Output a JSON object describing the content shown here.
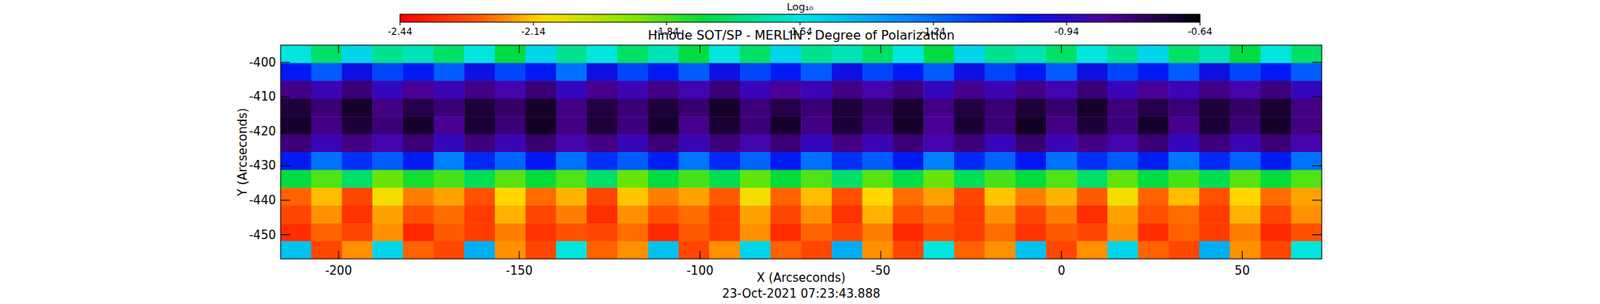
{
  "chart_data": {
    "type": "heatmap",
    "title": "Hinode SOT/SP - MERLIN : Degree of Polarization",
    "x_label": "X (Arcseconds)",
    "y_label": "Y (Arcseconds)",
    "date": "23-Oct-2021 07:23:43.888",
    "xlim": [
      -216,
      72
    ],
    "ylim": [
      -457,
      -395
    ],
    "xticks": [
      -200,
      -150,
      -100,
      -50,
      0,
      50
    ],
    "yticks": [
      -400,
      -410,
      -420,
      -430,
      -440,
      -450
    ],
    "x": [
      -211.8,
      -203.3,
      -194.8,
      -186.4,
      -177.9,
      -169.4,
      -161.0,
      -152.5,
      -144.0,
      -135.6,
      -127.1,
      -118.6,
      -110.1,
      -101.7,
      -93.2,
      -84.7,
      -76.3,
      -67.8,
      -59.3,
      -50.9,
      -42.4,
      -33.9,
      -25.5,
      -17.0,
      -8.5,
      0.0,
      8.5,
      16.9,
      25.4,
      33.9,
      42.3,
      50.8,
      59.3,
      67.8
    ],
    "y": [
      -397.6,
      -402.8,
      -407.9,
      -413.1,
      -418.3,
      -423.4,
      -428.6,
      -433.8,
      -439.0,
      -444.1,
      -449.3,
      -454.4
    ],
    "values": [
      [
        -1.55,
        -1.7,
        -1.5,
        -1.65,
        -1.6,
        -1.7,
        -1.55,
        -1.75,
        -1.5,
        -1.65,
        -1.55,
        -1.7,
        -1.6,
        -1.75,
        -1.55,
        -1.7,
        -1.5,
        -1.65,
        -1.6,
        -1.7,
        -1.55,
        -1.75,
        -1.5,
        -1.65,
        -1.6,
        -1.7,
        -1.55,
        -1.65,
        -1.5,
        -1.7,
        -1.6,
        -1.75,
        -1.55,
        -1.7
      ],
      [
        -1.05,
        -1.2,
        -1.0,
        -1.15,
        -1.05,
        -1.2,
        -1.0,
        -1.15,
        -1.05,
        -1.25,
        -1.0,
        -1.15,
        -1.05,
        -1.2,
        -1.0,
        -1.15,
        -1.05,
        -1.2,
        -1.0,
        -1.15,
        -1.05,
        -1.2,
        -1.0,
        -1.15,
        -1.05,
        -1.2,
        -1.0,
        -1.15,
        -1.05,
        -1.2,
        -1.0,
        -1.15,
        -1.05,
        -1.2
      ],
      [
        -0.82,
        -0.9,
        -0.8,
        -0.92,
        -0.84,
        -0.9,
        -0.82,
        -0.88,
        -0.8,
        -0.92,
        -0.83,
        -0.9,
        -0.82,
        -0.89,
        -0.8,
        -0.91,
        -0.84,
        -0.9,
        -0.82,
        -0.88,
        -0.81,
        -0.92,
        -0.83,
        -0.9,
        -0.82,
        -0.89,
        -0.8,
        -0.91,
        -0.84,
        -0.9,
        -0.82,
        -0.88,
        -0.81,
        -0.92
      ],
      [
        -0.72,
        -0.8,
        -0.7,
        -0.82,
        -0.74,
        -0.8,
        -0.72,
        -0.78,
        -0.7,
        -0.82,
        -0.73,
        -0.8,
        -0.72,
        -0.79,
        -0.7,
        -0.81,
        -0.74,
        -0.8,
        -0.72,
        -0.78,
        -0.71,
        -0.82,
        -0.73,
        -0.8,
        -0.72,
        -0.79,
        -0.7,
        -0.81,
        -0.74,
        -0.8,
        -0.72,
        -0.78,
        -0.71,
        -0.82
      ],
      [
        -0.7,
        -0.82,
        -0.72,
        -0.8,
        -0.7,
        -0.84,
        -0.71,
        -0.8,
        -0.69,
        -0.82,
        -0.72,
        -0.81,
        -0.7,
        -0.83,
        -0.71,
        -0.8,
        -0.7,
        -0.82,
        -0.72,
        -0.8,
        -0.7,
        -0.84,
        -0.71,
        -0.8,
        -0.69,
        -0.82,
        -0.72,
        -0.81,
        -0.7,
        -0.83,
        -0.71,
        -0.8,
        -0.7,
        -0.82
      ],
      [
        -0.8,
        -0.9,
        -0.82,
        -0.88,
        -0.8,
        -0.92,
        -0.81,
        -0.9,
        -0.79,
        -0.88,
        -0.82,
        -0.91,
        -0.8,
        -0.9,
        -0.81,
        -0.88,
        -0.8,
        -0.92,
        -0.82,
        -0.9,
        -0.8,
        -0.88,
        -0.81,
        -0.91,
        -0.79,
        -0.9,
        -0.82,
        -0.88,
        -0.8,
        -0.92,
        -0.81,
        -0.9,
        -0.8,
        -0.88
      ],
      [
        -1.05,
        -1.25,
        -1.1,
        -1.2,
        -1.05,
        -1.28,
        -1.08,
        -1.22,
        -1.04,
        -1.25,
        -1.1,
        -1.2,
        -1.06,
        -1.26,
        -1.08,
        -1.22,
        -1.05,
        -1.25,
        -1.1,
        -1.2,
        -1.05,
        -1.28,
        -1.08,
        -1.22,
        -1.04,
        -1.25,
        -1.1,
        -1.2,
        -1.06,
        -1.26,
        -1.08,
        -1.22,
        -1.05,
        -1.25
      ],
      [
        -1.75,
        -1.85,
        -1.7,
        -1.88,
        -1.78,
        -1.84,
        -1.72,
        -1.86,
        -1.76,
        -1.85,
        -1.7,
        -1.88,
        -1.75,
        -1.84,
        -1.73,
        -1.87,
        -1.76,
        -1.85,
        -1.7,
        -1.86,
        -1.74,
        -1.88,
        -1.72,
        -1.84,
        -1.76,
        -1.85,
        -1.7,
        -1.87,
        -1.75,
        -1.84,
        -1.73,
        -1.86,
        -1.76,
        -1.85
      ],
      [
        -2.25,
        -2.15,
        -2.3,
        -2.1,
        -2.22,
        -2.18,
        -2.28,
        -2.12,
        -2.24,
        -2.16,
        -2.3,
        -2.14,
        -2.22,
        -2.18,
        -2.26,
        -2.1,
        -2.25,
        -2.15,
        -2.28,
        -2.12,
        -2.24,
        -2.18,
        -2.3,
        -2.14,
        -2.22,
        -2.16,
        -2.26,
        -2.1,
        -2.25,
        -2.15,
        -2.28,
        -2.12,
        -2.24,
        -2.18
      ],
      [
        -2.3,
        -2.2,
        -2.34,
        -2.18,
        -2.28,
        -2.24,
        -2.32,
        -2.16,
        -2.3,
        -2.22,
        -2.35,
        -2.2,
        -2.28,
        -2.24,
        -2.32,
        -2.18,
        -2.3,
        -2.2,
        -2.34,
        -2.16,
        -2.28,
        -2.24,
        -2.32,
        -2.2,
        -2.3,
        -2.22,
        -2.35,
        -2.18,
        -2.28,
        -2.24,
        -2.32,
        -2.16,
        -2.3,
        -2.2
      ],
      [
        -2.35,
        -2.25,
        -2.3,
        -2.2,
        -2.36,
        -2.26,
        -2.32,
        -2.22,
        -2.34,
        -2.28,
        -2.3,
        -2.24,
        -2.36,
        -2.26,
        -2.32,
        -2.2,
        -2.35,
        -2.25,
        -2.3,
        -2.22,
        -2.36,
        -2.28,
        -2.32,
        -2.24,
        -2.34,
        -2.26,
        -2.3,
        -2.2,
        -2.35,
        -2.25,
        -2.32,
        -2.22,
        -2.36,
        -2.28
      ],
      [
        -1.45,
        -2.3,
        -2.2,
        -1.5,
        -2.25,
        -2.3,
        -1.4,
        -2.2,
        -2.3,
        -1.55,
        -2.25,
        -2.2,
        -1.45,
        -2.3,
        -2.2,
        -1.5,
        -2.25,
        -2.3,
        -1.4,
        -2.2,
        -2.3,
        -1.55,
        -2.25,
        -2.2,
        -1.45,
        -2.3,
        -2.2,
        -1.5,
        -2.25,
        -2.3,
        -1.4,
        -2.2,
        -2.3,
        -1.55
      ]
    ],
    "zlabel": "Log₁₀",
    "zlim": [
      -2.44,
      -0.64
    ],
    "zticks": [
      -2.44,
      -2.14,
      -1.84,
      -1.54,
      -1.24,
      -0.94,
      -0.64
    ]
  }
}
